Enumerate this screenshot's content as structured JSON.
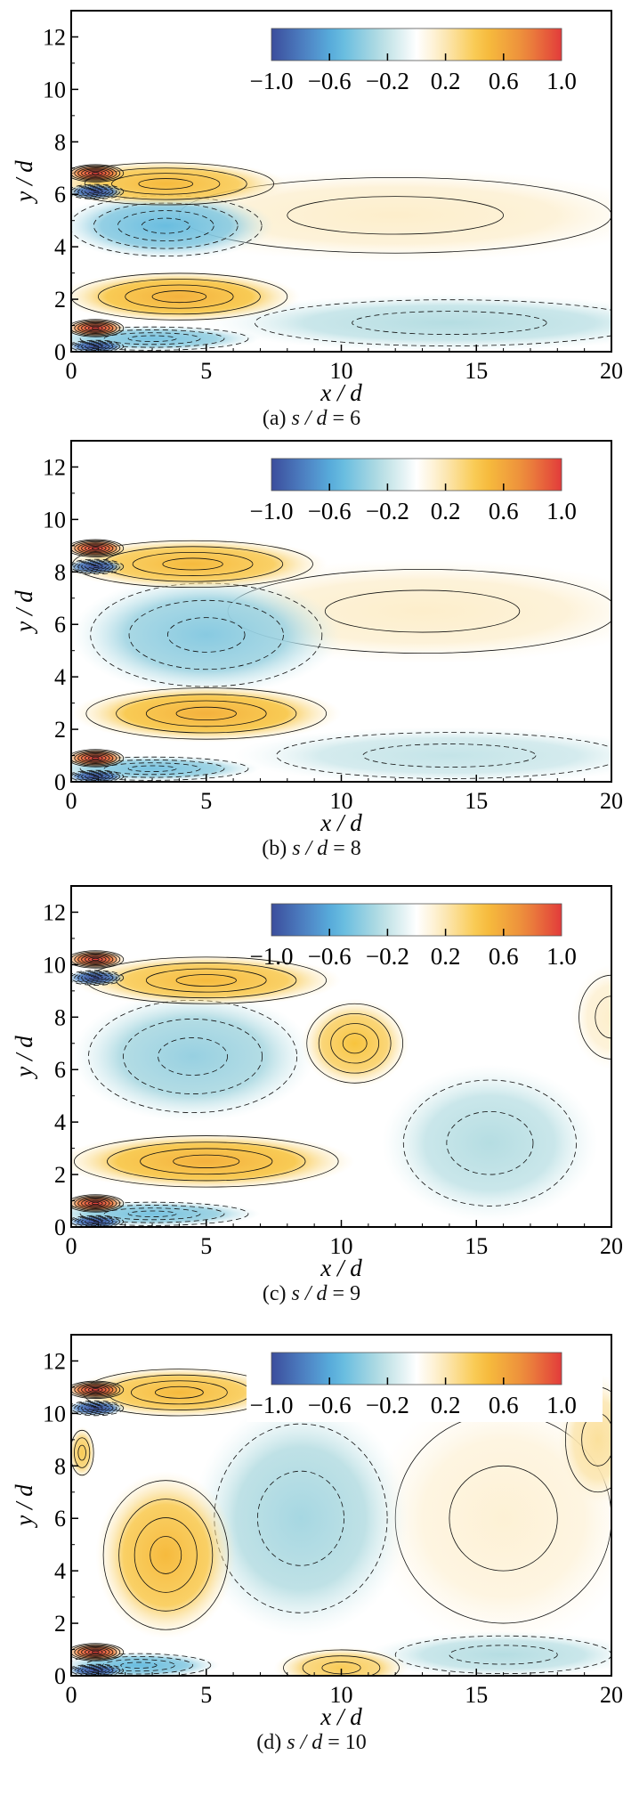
{
  "colorscale": {
    "stops": [
      [
        -1,
        "#3b4d9c"
      ],
      [
        -0.75,
        "#4f86c6"
      ],
      [
        -0.55,
        "#5ab6e0"
      ],
      [
        -0.25,
        "#b5dde2"
      ],
      [
        0,
        "#ffffff"
      ],
      [
        0.15,
        "#fdeecb"
      ],
      [
        0.45,
        "#f8c43d"
      ],
      [
        0.75,
        "#ec8a3c"
      ],
      [
        1,
        "#e23b3b"
      ]
    ],
    "contour_color": "#111111"
  },
  "chart_data": [
    {
      "type": "heatmap",
      "caption": {
        "label": "(a)",
        "var": "s / d",
        "eq": "= 6"
      },
      "xlabel": "x / d",
      "ylabel": "y / d",
      "xlim": [
        0,
        20
      ],
      "ylim": [
        0,
        13
      ],
      "xticks": [
        "0",
        "5",
        "10",
        "15",
        "20"
      ],
      "yticks": [
        "0",
        "2",
        "4",
        "6",
        "8",
        "10",
        "12"
      ],
      "colorbar": {
        "range": [
          -1,
          1
        ],
        "ticks": [
          "−1.0",
          "−0.6",
          "−0.2",
          "0.2",
          "0.6",
          "1.0"
        ],
        "tick_values": [
          -1,
          -0.6,
          -0.2,
          0.2,
          0.6,
          1
        ],
        "background": false
      },
      "regions": [
        {
          "x": 12,
          "y": 5.2,
          "rx": 10,
          "ry": 1.8,
          "v": 0.15
        },
        {
          "x": 14,
          "y": 1.1,
          "rx": 9,
          "ry": 1.1,
          "v": -0.25
        },
        {
          "x": 3.5,
          "y": 4.8,
          "rx": 4,
          "ry": 1.3,
          "v": -0.5
        },
        {
          "x": 3.5,
          "y": 6.4,
          "rx": 4.5,
          "ry": 0.9,
          "v": 0.5
        },
        {
          "x": 4,
          "y": 2.1,
          "rx": 4.5,
          "ry": 1,
          "v": 0.55
        },
        {
          "x": 3,
          "y": 0.5,
          "rx": 4,
          "ry": 0.5,
          "v": -0.45
        },
        {
          "x": 0.9,
          "y": 6.8,
          "rx": 1.1,
          "ry": 0.35,
          "v": 1
        },
        {
          "x": 0.9,
          "y": 6.1,
          "rx": 1.1,
          "ry": 0.3,
          "v": -1
        },
        {
          "x": 0.9,
          "y": 0.9,
          "rx": 1.1,
          "ry": 0.35,
          "v": 1
        },
        {
          "x": 0.9,
          "y": 0.2,
          "rx": 1.1,
          "ry": 0.25,
          "v": -1
        }
      ]
    },
    {
      "type": "heatmap",
      "caption": {
        "label": "(b)",
        "var": "s / d",
        "eq": "= 8"
      },
      "xlabel": "x / d",
      "ylabel": "y / d",
      "xlim": [
        0,
        20
      ],
      "ylim": [
        0,
        13
      ],
      "xticks": [
        "0",
        "5",
        "10",
        "15",
        "20"
      ],
      "yticks": [
        "0",
        "2",
        "4",
        "6",
        "8",
        "10",
        "12"
      ],
      "colorbar": {
        "range": [
          -1,
          1
        ],
        "ticks": [
          "−1.0",
          "−0.6",
          "−0.2",
          "0.2",
          "0.6",
          "1.0"
        ],
        "tick_values": [
          -1,
          -0.6,
          -0.2,
          0.2,
          0.6,
          1
        ],
        "background": false
      },
      "regions": [
        {
          "x": 13,
          "y": 6.5,
          "rx": 9,
          "ry": 2,
          "v": 0.15
        },
        {
          "x": 14,
          "y": 1,
          "rx": 8,
          "ry": 1.1,
          "v": -0.2
        },
        {
          "x": 5,
          "y": 5.6,
          "rx": 5,
          "ry": 2.3,
          "v": -0.4
        },
        {
          "x": 4.5,
          "y": 8.3,
          "rx": 5,
          "ry": 1,
          "v": 0.5
        },
        {
          "x": 5,
          "y": 2.6,
          "rx": 5,
          "ry": 1.1,
          "v": 0.55
        },
        {
          "x": 3,
          "y": 0.5,
          "rx": 4,
          "ry": 0.5,
          "v": -0.45
        },
        {
          "x": 0.9,
          "y": 8.9,
          "rx": 1.1,
          "ry": 0.35,
          "v": 1
        },
        {
          "x": 0.9,
          "y": 8.2,
          "rx": 1.1,
          "ry": 0.3,
          "v": -1
        },
        {
          "x": 0.9,
          "y": 0.9,
          "rx": 1.1,
          "ry": 0.35,
          "v": 1
        },
        {
          "x": 0.9,
          "y": 0.2,
          "rx": 1.1,
          "ry": 0.25,
          "v": -1
        }
      ]
    },
    {
      "type": "heatmap",
      "caption": {
        "label": "(c)",
        "var": "s / d",
        "eq": "= 9"
      },
      "xlabel": "x / d",
      "ylabel": "y / d",
      "xlim": [
        0,
        20
      ],
      "ylim": [
        0,
        13
      ],
      "xticks": [
        "0",
        "5",
        "10",
        "15",
        "20"
      ],
      "yticks": [
        "0",
        "2",
        "4",
        "6",
        "8",
        "10",
        "12"
      ],
      "colorbar": {
        "range": [
          -1,
          1
        ],
        "ticks": [
          "−1.0",
          "−0.6",
          "−0.2",
          "0.2",
          "0.6",
          "1.0"
        ],
        "tick_values": [
          -1,
          -0.6,
          -0.2,
          0.2,
          0.6,
          1
        ],
        "background": false
      },
      "regions": [
        {
          "x": 15.5,
          "y": 3.2,
          "rx": 4,
          "ry": 3,
          "v": -0.25
        },
        {
          "x": 10.5,
          "y": 7,
          "rx": 2,
          "ry": 1.7,
          "v": 0.45
        },
        {
          "x": 20,
          "y": 8,
          "rx": 1.5,
          "ry": 2,
          "v": 0.15
        },
        {
          "x": 4.5,
          "y": 6.5,
          "rx": 4.5,
          "ry": 2.5,
          "v": -0.35
        },
        {
          "x": 5,
          "y": 9.4,
          "rx": 5,
          "ry": 1,
          "v": 0.5
        },
        {
          "x": 5,
          "y": 2.5,
          "rx": 5.5,
          "ry": 1.1,
          "v": 0.55
        },
        {
          "x": 3,
          "y": 0.5,
          "rx": 4,
          "ry": 0.5,
          "v": -0.45
        },
        {
          "x": 0.9,
          "y": 10.2,
          "rx": 1.1,
          "ry": 0.35,
          "v": 1
        },
        {
          "x": 0.9,
          "y": 9.5,
          "rx": 1.1,
          "ry": 0.3,
          "v": -1
        },
        {
          "x": 0.9,
          "y": 0.9,
          "rx": 1.1,
          "ry": 0.35,
          "v": 1
        },
        {
          "x": 0.9,
          "y": 0.2,
          "rx": 1.1,
          "ry": 0.25,
          "v": -1
        }
      ]
    },
    {
      "type": "heatmap",
      "caption": {
        "label": "(d)",
        "var": "s / d",
        "eq": "= 10"
      },
      "xlabel": "x / d",
      "ylabel": "y / d",
      "xlim": [
        0,
        20
      ],
      "ylim": [
        0,
        13
      ],
      "xticks": [
        "0",
        "5",
        "10",
        "15",
        "20"
      ],
      "yticks": [
        "0",
        "2",
        "4",
        "6",
        "8",
        "10",
        "12"
      ],
      "colorbar": {
        "range": [
          -1,
          1
        ],
        "ticks": [
          "−1.0",
          "−0.6",
          "−0.2",
          "0.2",
          "0.6",
          "1.0"
        ],
        "tick_values": [
          -1,
          -0.6,
          -0.2,
          0.2,
          0.6,
          1
        ],
        "background": true
      },
      "regions": [
        {
          "x": 16,
          "y": 6,
          "rx": 5,
          "ry": 5,
          "v": 0.12
        },
        {
          "x": 19.5,
          "y": 9,
          "rx": 1.5,
          "ry": 2.5,
          "v": 0.25
        },
        {
          "x": 16,
          "y": 0.8,
          "rx": 5,
          "ry": 0.9,
          "v": -0.25
        },
        {
          "x": 8.5,
          "y": 6,
          "rx": 4,
          "ry": 4.5,
          "v": -0.3
        },
        {
          "x": 10,
          "y": 0.3,
          "rx": 2.5,
          "ry": 0.8,
          "v": 0.4
        },
        {
          "x": 3.5,
          "y": 4.6,
          "rx": 2.6,
          "ry": 3.2,
          "v": 0.5
        },
        {
          "x": 4,
          "y": 10.8,
          "rx": 4,
          "ry": 1,
          "v": 0.5
        },
        {
          "x": 0.4,
          "y": 8.5,
          "rx": 0.5,
          "ry": 1,
          "v": 0.4
        },
        {
          "x": 2.5,
          "y": 0.4,
          "rx": 3,
          "ry": 0.5,
          "v": -0.5
        },
        {
          "x": 0.9,
          "y": 10.9,
          "rx": 1.1,
          "ry": 0.35,
          "v": 1
        },
        {
          "x": 0.9,
          "y": 10.2,
          "rx": 1.1,
          "ry": 0.3,
          "v": -1
        },
        {
          "x": 0.9,
          "y": 0.9,
          "rx": 1.1,
          "ry": 0.35,
          "v": 1
        },
        {
          "x": 0.9,
          "y": 0.2,
          "rx": 1.1,
          "ry": 0.25,
          "v": -1
        }
      ]
    }
  ]
}
